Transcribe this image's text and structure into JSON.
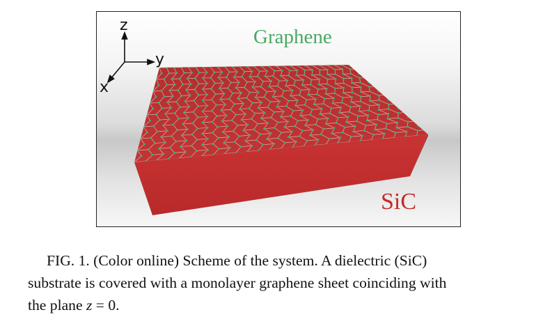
{
  "figure": {
    "labels": {
      "graphene": "Graphene",
      "substrate": "SiC"
    },
    "axes": {
      "z": "z",
      "y": "y",
      "x": "x"
    },
    "colors": {
      "graphene_label": "#4aa862",
      "substrate_label": "#c42a2a",
      "substrate_top": "#b83232",
      "substrate_front": "#c12e2e",
      "substrate_side": "#9e2424",
      "lattice_atoms": "#2fb37a"
    }
  },
  "caption": {
    "line1": "FIG. 1. (Color online) Scheme of the system. A dielectric (SiC)",
    "line2": "substrate is covered with a monolayer graphene sheet coinciding with",
    "line3_prefix": "the plane ",
    "line3_math_var": "z",
    "line3_math_rest": " = 0."
  }
}
